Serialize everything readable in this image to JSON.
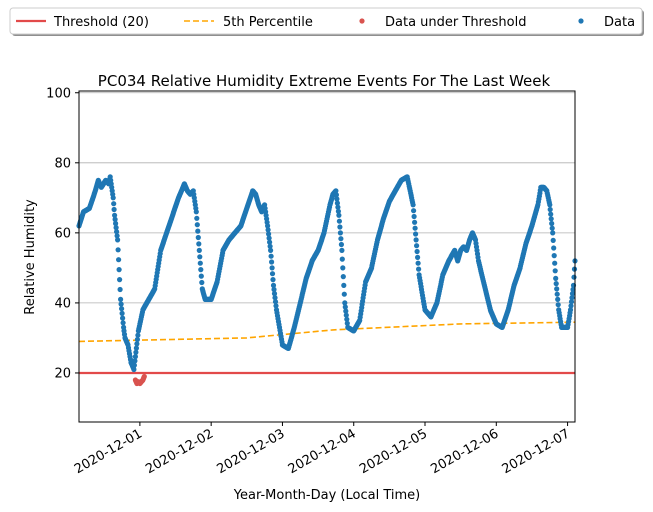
{
  "chart_data": {
    "type": "scatter",
    "title": "PC034 Relative Humidity Extreme Events For The Last Week",
    "xlabel": "Year-Month-Day (Local Time)",
    "ylabel": "Relative Humidity",
    "xlim": [
      "2020-11-30T03:30",
      "2020-12-07T02:30"
    ],
    "ylim": [
      6,
      100.5
    ],
    "yticks": [
      20,
      40,
      60,
      80,
      100
    ],
    "xticks": [
      "2020-12-01",
      "2020-12-02",
      "2020-12-03",
      "2020-12-04",
      "2020-12-05",
      "2020-12-06",
      "2020-12-07"
    ],
    "grid": "y-major",
    "legend": {
      "placement": "top, above plot, 4 columns",
      "entries": [
        {
          "label": "Threshold (20)",
          "kind": "line",
          "color": "#e24a4a"
        },
        {
          "label": "5th Percentile",
          "kind": "dashed-line",
          "color": "#ffa500"
        },
        {
          "label": "Data under Threshold",
          "kind": "marker",
          "color": "#d9534f"
        },
        {
          "label": "Data",
          "kind": "marker",
          "color": "#1f77b4"
        }
      ]
    },
    "threshold": {
      "name": "Threshold (20)",
      "value": 20,
      "color": "#e24a4a"
    },
    "percentile_5th": {
      "name": "5th Percentile",
      "color": "#ffa500",
      "x": [
        "2020-11-30T03:30",
        "2020-12-02T12:00",
        "2020-12-03T17:00",
        "2020-12-05T12:00",
        "2020-12-07T02:30"
      ],
      "y": [
        29,
        30,
        32.3,
        34,
        34.5
      ]
    },
    "series": [
      {
        "name": "Data",
        "color": "#1f77b4",
        "x": [
          "2020-11-30T03:30",
          "2020-11-30T05:00",
          "2020-11-30T07:00",
          "2020-11-30T09:00",
          "2020-11-30T10:00",
          "2020-11-30T11:00",
          "2020-11-30T12:30",
          "2020-11-30T13:30",
          "2020-11-30T14:00",
          "2020-11-30T14:30",
          "2020-11-30T15:00",
          "2020-11-30T15:30",
          "2020-11-30T16:30",
          "2020-11-30T17:30",
          "2020-11-30T18:30",
          "2020-11-30T19:00",
          "2020-11-30T20:00",
          "2020-11-30T21:00",
          "2020-11-30T22:00",
          "2020-11-30T23:30",
          "2020-12-01T01:00",
          "2020-12-01T03:00",
          "2020-12-01T05:00",
          "2020-12-01T07:00",
          "2020-12-01T09:00",
          "2020-12-01T11:00",
          "2020-12-01T13:00",
          "2020-12-01T15:00",
          "2020-12-01T16:00",
          "2020-12-01T17:00",
          "2020-12-01T18:00",
          "2020-12-01T19:00",
          "2020-12-01T20:00",
          "2020-12-01T21:00",
          "2020-12-01T22:00",
          "2020-12-02T00:00",
          "2020-12-02T02:00",
          "2020-12-02T04:00",
          "2020-12-02T06:00",
          "2020-12-02T08:00",
          "2020-12-02T10:00",
          "2020-12-02T12:00",
          "2020-12-02T14:00",
          "2020-12-02T15:00",
          "2020-12-02T16:00",
          "2020-12-02T17:00",
          "2020-12-02T18:00",
          "2020-12-02T19:00",
          "2020-12-02T20:00",
          "2020-12-02T21:00",
          "2020-12-02T22:00",
          "2020-12-03T00:00",
          "2020-12-03T02:00",
          "2020-12-03T04:00",
          "2020-12-03T06:00",
          "2020-12-03T08:00",
          "2020-12-03T10:00",
          "2020-12-03T12:00",
          "2020-12-03T14:00",
          "2020-12-03T15:00",
          "2020-12-03T16:00",
          "2020-12-03T17:00",
          "2020-12-03T18:00",
          "2020-12-03T19:00",
          "2020-12-03T20:00",
          "2020-12-03T21:00",
          "2020-12-03T22:00",
          "2020-12-04T00:00",
          "2020-12-04T02:00",
          "2020-12-04T04:00",
          "2020-12-04T06:00",
          "2020-12-04T08:00",
          "2020-12-04T10:00",
          "2020-12-04T12:00",
          "2020-12-04T14:00",
          "2020-12-04T16:00",
          "2020-12-04T18:00",
          "2020-12-04T20:00",
          "2020-12-04T22:00",
          "2020-12-05T00:00",
          "2020-12-05T02:00",
          "2020-12-05T04:00",
          "2020-12-05T06:00",
          "2020-12-05T08:00",
          "2020-12-05T10:00",
          "2020-12-05T11:00",
          "2020-12-05T12:00",
          "2020-12-05T13:00",
          "2020-12-05T14:00",
          "2020-12-05T15:00",
          "2020-12-05T16:00",
          "2020-12-05T17:00",
          "2020-12-05T18:00",
          "2020-12-05T20:00",
          "2020-12-05T22:00",
          "2020-12-06T00:00",
          "2020-12-06T02:00",
          "2020-12-06T04:00",
          "2020-12-06T06:00",
          "2020-12-06T08:00",
          "2020-12-06T10:00",
          "2020-12-06T12:00",
          "2020-12-06T14:00",
          "2020-12-06T15:00",
          "2020-12-06T16:00",
          "2020-12-06T17:00",
          "2020-12-06T18:00",
          "2020-12-06T19:00",
          "2020-12-06T20:00",
          "2020-12-06T21:00",
          "2020-12-06T22:00",
          "2020-12-07T00:00",
          "2020-12-07T01:00",
          "2020-12-07T02:00",
          "2020-12-07T02:30"
        ],
        "y": [
          62,
          66,
          67,
          72,
          75,
          73,
          75,
          74,
          76,
          73,
          70,
          65,
          58,
          41,
          33,
          30,
          28,
          23,
          21,
          32,
          38,
          41,
          44,
          55,
          60,
          65,
          70,
          74,
          72,
          71,
          72,
          66,
          55,
          44,
          41,
          41,
          46,
          55,
          58,
          60,
          62,
          67,
          72,
          71,
          68,
          66,
          68,
          62,
          55,
          45,
          38,
          28,
          27,
          33,
          40,
          47,
          52,
          55,
          60,
          64,
          68,
          71,
          72,
          65,
          55,
          40,
          33,
          32,
          35,
          46,
          50,
          58,
          64,
          69,
          72,
          75,
          76,
          68,
          48,
          38,
          36,
          40,
          48,
          52,
          55,
          52,
          55,
          56,
          55,
          58,
          60,
          58,
          52,
          45,
          38,
          34,
          33,
          38,
          45,
          50,
          57,
          62,
          68,
          73,
          73,
          72,
          68,
          60,
          47,
          38,
          33,
          33,
          38,
          45,
          52
        ]
      },
      {
        "name": "Data under Threshold",
        "color": "#d9534f",
        "x": [
          "2020-11-30T22:30",
          "2020-11-30T23:00",
          "2020-11-30T23:30",
          "2020-12-01T00:00",
          "2020-12-01T00:30",
          "2020-12-01T01:00",
          "2020-12-01T01:30"
        ],
        "y": [
          18,
          17,
          17.5,
          17,
          17.5,
          18,
          19
        ]
      }
    ]
  }
}
